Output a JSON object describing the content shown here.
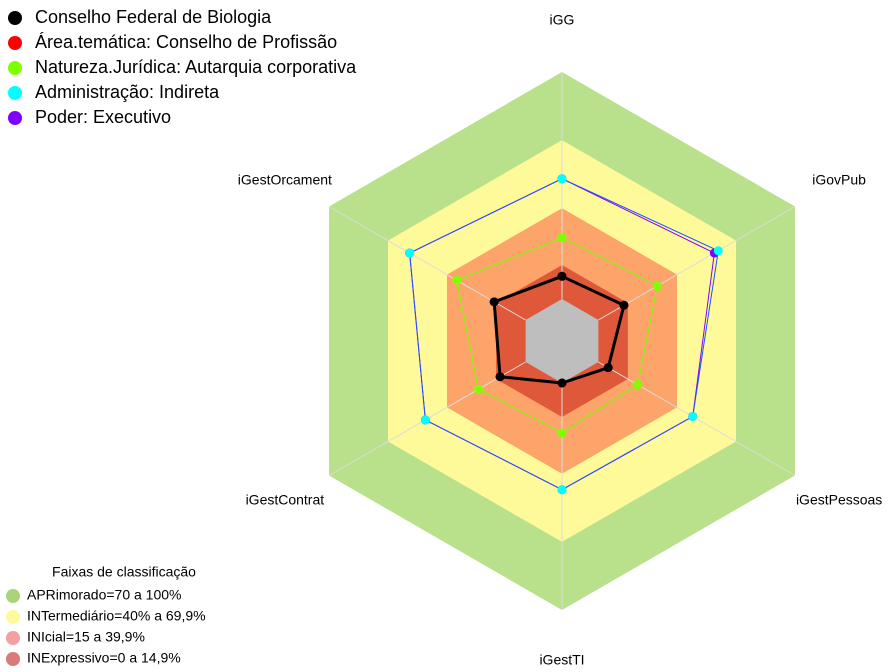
{
  "chart_data": {
    "type": "radar",
    "categories": [
      "iGG",
      "iGovPub",
      "iGestPessoas",
      "iGestTI",
      "iGestContrat",
      "iGestOrcament"
    ],
    "ylim": [
      0,
      100
    ],
    "series": [
      {
        "name": "Conselho Federal de Biologia",
        "color": "#000000",
        "values": [
          10,
          13,
          5,
          0,
          13,
          16
        ]
      },
      {
        "name": "Área.temática: Conselho de Profissão",
        "color": "#ff0000",
        "values": [
          10,
          13,
          5,
          0,
          13,
          16
        ]
      },
      {
        "name": "Natureza.Jurídica: Autarquia corporativa",
        "color": "#7fff00",
        "values": [
          27,
          30,
          20,
          22,
          24,
          35
        ]
      },
      {
        "name": "Administração: Indireta",
        "color": "#00ffff",
        "values": [
          53,
          61,
          48,
          47,
          51,
          59
        ]
      },
      {
        "name": "Poder: Executivo",
        "color": "#8000ff",
        "values": [
          53,
          59,
          48,
          47,
          51,
          59
        ]
      }
    ],
    "bands_title": "Faixas de classificação",
    "bands": [
      {
        "label": "APRimorado=70 a 100%",
        "from": 70,
        "to": 100,
        "color": "#b9e08a",
        "legend_color": "#a9d47a"
      },
      {
        "label": "INTermediário=40% a 69,9%",
        "from": 40,
        "to": 70,
        "color": "#fffa99",
        "legend_color": "#fffa99"
      },
      {
        "label": "INIcial=15 a 39,9%",
        "from": 15,
        "to": 40,
        "color": "#fca46a",
        "legend_color": "#f4a0a0"
      },
      {
        "label": "INExpressivo=0 a 14,9%",
        "from": 0,
        "to": 15,
        "color": "#e0583a",
        "legend_color": "#d97b7b"
      }
    ]
  }
}
